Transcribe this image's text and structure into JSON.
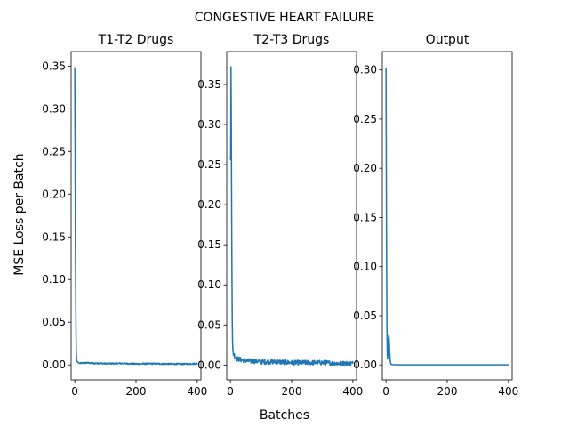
{
  "figure": {
    "suptitle": "CONGESTIVE HEART FAILURE",
    "xlabel": "Batches",
    "ylabel": "MSE Loss per Batch",
    "line_color": "#1f77b4"
  },
  "chart_data": [
    {
      "type": "line",
      "title": "T1-T2 Drugs",
      "xlabel": "",
      "ylabel": "",
      "xlim": [
        -12,
        412
      ],
      "ylim": [
        -0.0175,
        0.367
      ],
      "xticks": [
        0,
        200,
        400
      ],
      "yticks": [
        0.0,
        0.05,
        0.1,
        0.15,
        0.2,
        0.25,
        0.3,
        0.35
      ],
      "ytick_labels": [
        "0.00",
        "0.05",
        "0.10",
        "0.15",
        "0.20",
        "0.25",
        "0.30",
        "0.35"
      ],
      "grid": false,
      "series": [
        {
          "x": [
            0,
            1,
            2,
            3,
            4,
            5,
            6,
            8,
            10,
            15,
            20,
            40,
            60,
            80,
            100,
            150,
            200,
            250,
            300,
            350,
            400
          ],
          "y": [
            0.348,
            0.25,
            0.15,
            0.08,
            0.04,
            0.015,
            0.006,
            0.004,
            0.003,
            0.002,
            0.002,
            0.0025,
            0.0018,
            0.002,
            0.0015,
            0.0018,
            0.0012,
            0.0015,
            0.0012,
            0.001,
            0.0015
          ],
          "noise": 0.0008
        }
      ]
    },
    {
      "type": "line",
      "title": "T2-T3 Drugs",
      "xlabel": "",
      "ylabel": "",
      "xlim": [
        -12,
        412
      ],
      "ylim": [
        -0.0185,
        0.391
      ],
      "xticks": [
        0,
        200,
        400
      ],
      "yticks": [
        0.0,
        0.05,
        0.1,
        0.15,
        0.2,
        0.25,
        0.3,
        0.35
      ],
      "ytick_labels": [
        "0.00",
        "0.05",
        "0.10",
        "0.15",
        "0.20",
        "0.25",
        "0.30",
        "0.35"
      ],
      "grid": false,
      "series": [
        {
          "x": [
            0,
            1,
            2,
            3,
            4,
            5,
            6,
            7,
            8,
            10,
            12,
            15,
            20,
            30,
            40,
            60,
            80,
            100,
            150,
            200,
            250,
            300,
            350,
            400
          ],
          "y": [
            0.26,
            0.256,
            0.372,
            0.3,
            0.2,
            0.12,
            0.06,
            0.03,
            0.02,
            0.012,
            0.014,
            0.009,
            0.008,
            0.007,
            0.006,
            0.005,
            0.005,
            0.004,
            0.004,
            0.003,
            0.003,
            0.003,
            0.002,
            0.002
          ],
          "noise": 0.003
        }
      ]
    },
    {
      "type": "line",
      "title": "Output",
      "xlabel": "",
      "ylabel": "",
      "xlim": [
        -12,
        412
      ],
      "ylim": [
        -0.0152,
        0.3187
      ],
      "xticks": [
        0,
        200,
        400
      ],
      "yticks": [
        0.0,
        0.05,
        0.1,
        0.15,
        0.2,
        0.25,
        0.3
      ],
      "ytick_labels": [
        "0.00",
        "0.05",
        "0.10",
        "0.15",
        "0.20",
        "0.25",
        "0.30"
      ],
      "grid": false,
      "series": [
        {
          "x": [
            0,
            1,
            2,
            3,
            4,
            5,
            6,
            7,
            8,
            9,
            10,
            11,
            12,
            13,
            14,
            15,
            16,
            18,
            20,
            30,
            50,
            100,
            200,
            300,
            400
          ],
          "y": [
            0.302,
            0.2,
            0.1,
            0.04,
            0.012,
            0.006,
            0.009,
            0.018,
            0.027,
            0.03,
            0.028,
            0.022,
            0.014,
            0.008,
            0.004,
            0.002,
            0.001,
            0.0005,
            0.0003,
            0.0002,
            0.0001,
            0.0001,
            0.0001,
            0.0001,
            0.0001
          ],
          "noise": 0
        }
      ]
    }
  ]
}
